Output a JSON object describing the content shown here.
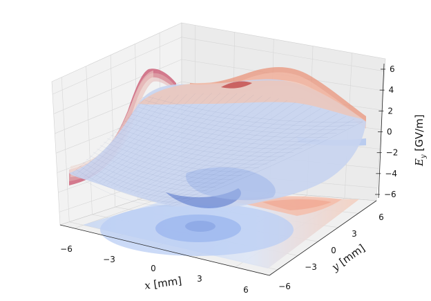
{
  "chart_data": {
    "type": "surface3d",
    "x_axis": {
      "label_var": "x",
      "label_unit": " [mm]",
      "ticks": [
        "−6",
        "−3",
        "0",
        "3",
        "6"
      ],
      "range": [
        -6,
        6
      ]
    },
    "y_axis": {
      "label_var": "y",
      "label_unit": " [mm]",
      "ticks": [
        "−6",
        "−3",
        "0",
        "3",
        "6"
      ],
      "range": [
        -6,
        6
      ]
    },
    "z_axis": {
      "label_var": "E",
      "label_sub": "y",
      "label_unit": " [GV/m]",
      "ticks": [
        "−6",
        "−4",
        "−2",
        "0",
        "2",
        "4",
        "6"
      ],
      "range": [
        -6,
        6
      ]
    },
    "grid": true,
    "colormap": "coolwarm",
    "projections": [
      "contour on z = -6 plane",
      "profile curves on x = -6 wall",
      "profile curves on y = 6 wall"
    ]
  }
}
